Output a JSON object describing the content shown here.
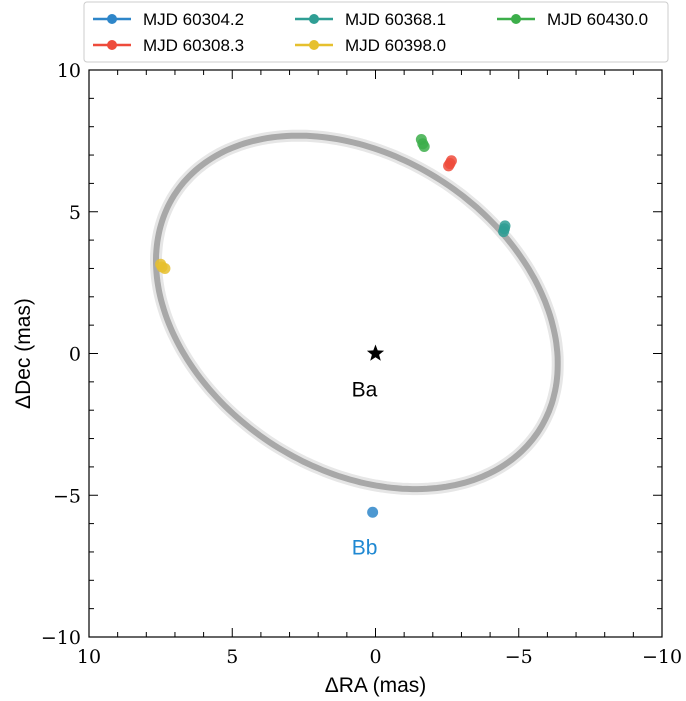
{
  "chart_data": {
    "type": "scatter",
    "title": "",
    "xlabel": "ΔRA (mas)",
    "ylabel": "ΔDec (mas)",
    "xlim": [
      10,
      -10
    ],
    "ylim": [
      -10,
      10
    ],
    "x_ticks": [
      10,
      5,
      0,
      -5,
      -10
    ],
    "y_ticks": [
      10,
      5,
      0,
      -5,
      -10
    ],
    "x_tick_labels": [
      "10",
      "5",
      "0",
      "−5",
      "−10"
    ],
    "y_tick_labels": [
      "10",
      "5",
      "0",
      "−5",
      "−10"
    ],
    "grid": false,
    "legend_position": "top",
    "orbit": {
      "color": "#a8a8a8",
      "center": [
        0.65,
        1.45
      ],
      "semi_major": 7.6,
      "semi_minor": 5.5,
      "rotation_deg": 34
    },
    "primary": {
      "label": "Ba",
      "x": 0,
      "y": 0,
      "color": "#000000"
    },
    "companion": {
      "label": "Bb",
      "x": 0.1,
      "y": -5.6,
      "color": "#1f88d2"
    },
    "series": [
      {
        "name": "MJD 60304.2",
        "color": "#2e86c9",
        "points": [
          [
            0.1,
            -5.6
          ]
        ]
      },
      {
        "name": "MJD 60308.3",
        "color": "#ee4b3b",
        "points": [
          [
            -2.6,
            6.7
          ],
          [
            -2.65,
            6.8
          ],
          [
            -2.55,
            6.62
          ]
        ]
      },
      {
        "name": "MJD 60368.1",
        "color": "#2f9e94",
        "points": [
          [
            -4.5,
            4.4
          ],
          [
            -4.47,
            4.3
          ],
          [
            -4.52,
            4.5
          ]
        ]
      },
      {
        "name": "MJD 60398.0",
        "color": "#e6c02e",
        "points": [
          [
            7.45,
            3.05
          ],
          [
            7.5,
            3.15
          ],
          [
            7.35,
            3.0
          ]
        ]
      },
      {
        "name": "MJD 60430.0",
        "color": "#3cae4a",
        "points": [
          [
            -1.65,
            7.4
          ],
          [
            -1.6,
            7.55
          ],
          [
            -1.7,
            7.3
          ]
        ]
      }
    ]
  }
}
